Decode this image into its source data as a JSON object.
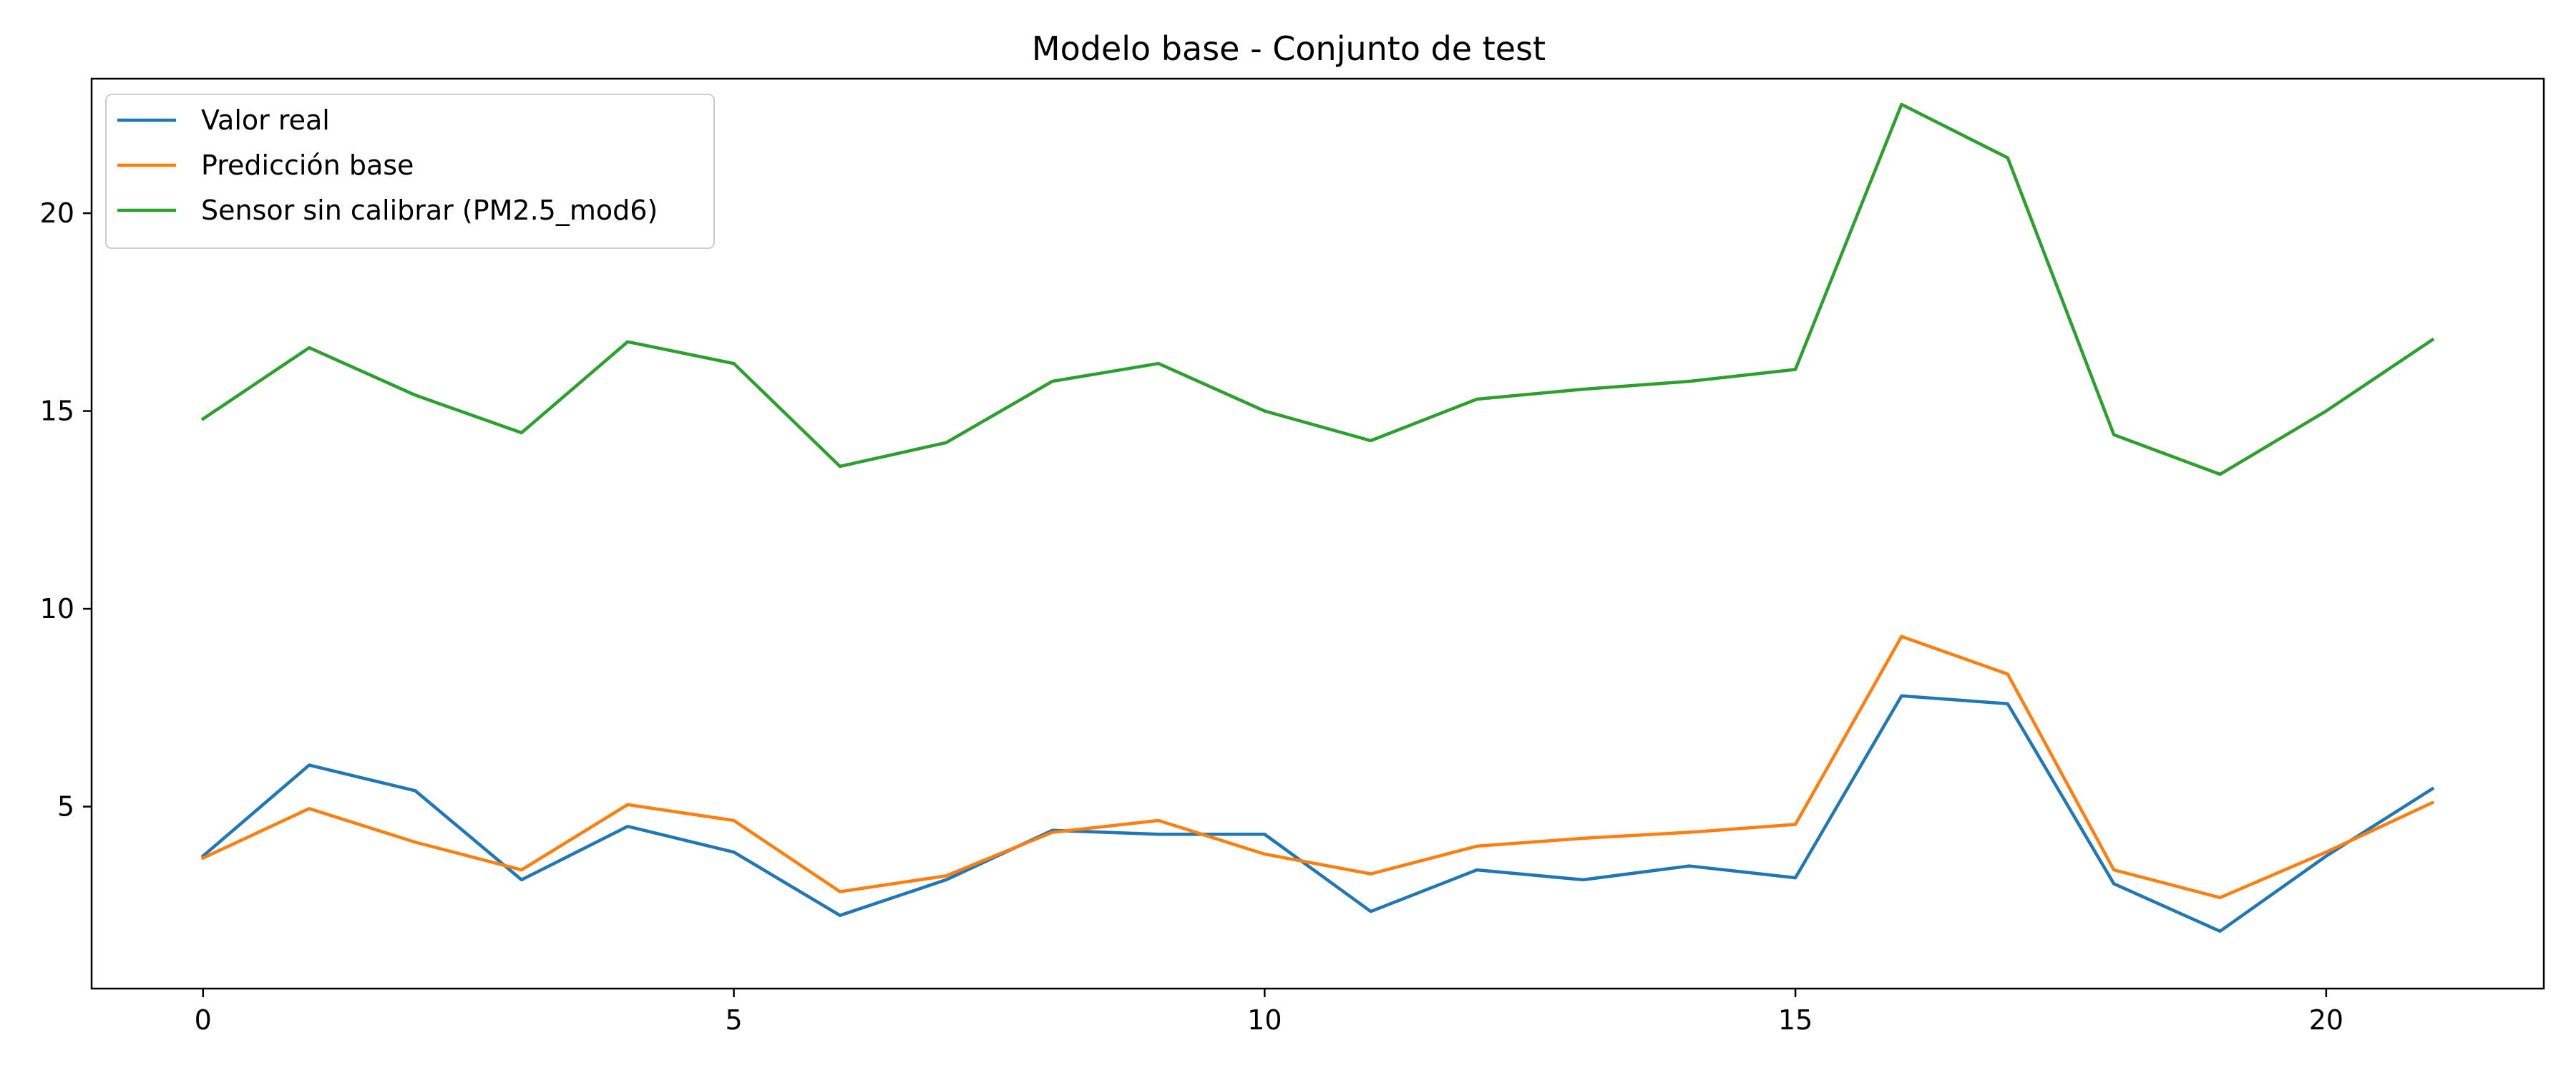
{
  "chart_data": {
    "type": "line",
    "title": "Modelo base - Conjunto de test",
    "xlabel": "",
    "ylabel": "",
    "xlim": [
      -1.05,
      22.05
    ],
    "ylim": [
      0.4,
      23.4
    ],
    "xticks": [
      0,
      5,
      10,
      15,
      20
    ],
    "yticks": [
      5,
      10,
      15,
      20
    ],
    "grid": false,
    "legend_position": "top-left",
    "x": [
      0,
      1,
      2,
      3,
      4,
      5,
      6,
      7,
      8,
      9,
      10,
      11,
      12,
      13,
      14,
      15,
      16,
      17,
      18,
      19,
      20,
      21
    ],
    "series": [
      {
        "name": "Valor real",
        "color": "#1f77b4",
        "values": [
          3.75,
          6.05,
          5.4,
          3.15,
          4.5,
          3.85,
          2.25,
          3.15,
          4.4,
          4.3,
          4.3,
          2.35,
          3.4,
          3.15,
          3.5,
          3.2,
          7.8,
          7.6,
          3.05,
          1.85,
          3.75,
          5.45
        ]
      },
      {
        "name": "Predicción base",
        "color": "#ff7f0e",
        "values": [
          3.7,
          4.95,
          4.1,
          3.4,
          5.05,
          4.65,
          2.85,
          3.25,
          4.35,
          4.65,
          3.8,
          3.3,
          4.0,
          4.2,
          4.35,
          4.55,
          9.3,
          8.35,
          3.4,
          2.7,
          3.85,
          5.1
        ]
      },
      {
        "name": "Sensor sin calibrar (PM2.5_mod6)",
        "color": "#2ca02c",
        "values": [
          14.8,
          16.6,
          15.4,
          14.45,
          16.75,
          16.2,
          13.6,
          14.2,
          15.75,
          16.2,
          15.0,
          14.25,
          15.3,
          15.55,
          15.75,
          16.05,
          22.75,
          21.4,
          14.4,
          13.4,
          15.0,
          16.8
        ]
      }
    ]
  }
}
